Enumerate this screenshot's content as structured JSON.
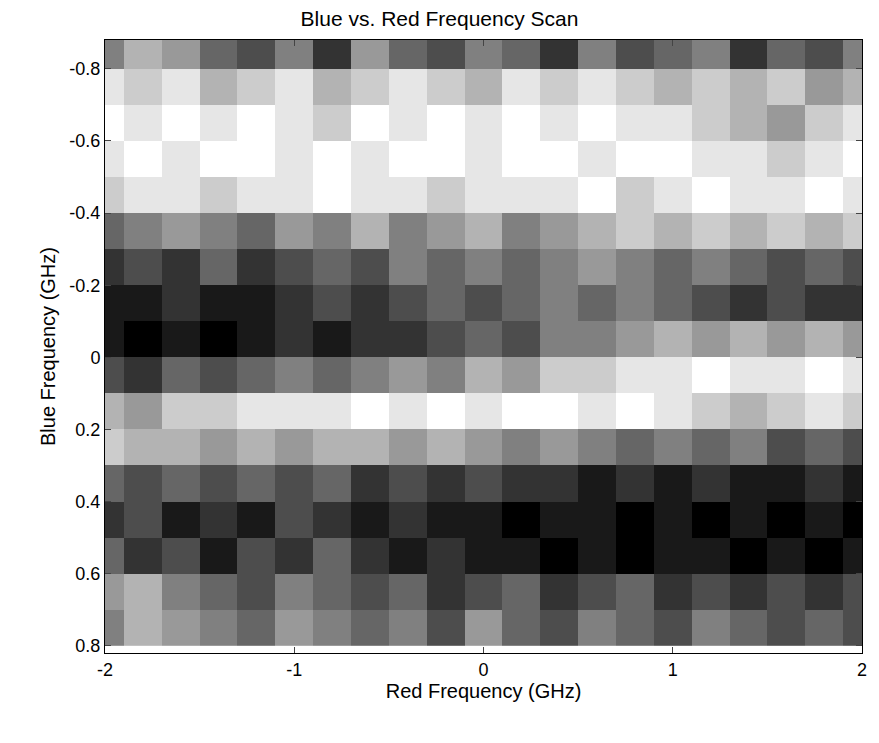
{
  "chart_data": {
    "type": "heatmap",
    "title": "Blue vs. Red Frequency Scan",
    "x_label": "Red Frequency (GHz)",
    "y_label": "Blue Frequency (GHz)",
    "x": [
      -2.0,
      -1.8,
      -1.6,
      -1.4,
      -1.2,
      -1.0,
      -0.8,
      -0.6,
      -0.4,
      -0.2,
      0.0,
      0.2,
      0.4,
      0.6,
      0.8,
      1.0,
      1.2,
      1.4,
      1.6,
      1.8,
      2.0
    ],
    "y": [
      -0.85,
      -0.75,
      -0.65,
      -0.55,
      -0.45,
      -0.35,
      -0.25,
      -0.15,
      -0.05,
      0.05,
      0.15,
      0.25,
      0.35,
      0.45,
      0.55,
      0.65,
      0.75
    ],
    "z": [
      [
        0.5,
        0.3,
        0.4,
        0.6,
        0.7,
        0.5,
        0.8,
        0.4,
        0.6,
        0.7,
        0.5,
        0.6,
        0.8,
        0.5,
        0.7,
        0.6,
        0.5,
        0.8,
        0.6,
        0.7,
        0.5
      ],
      [
        0.1,
        0.2,
        0.1,
        0.3,
        0.2,
        0.1,
        0.3,
        0.2,
        0.1,
        0.2,
        0.3,
        0.1,
        0.2,
        0.1,
        0.2,
        0.3,
        0.2,
        0.3,
        0.2,
        0.4,
        0.3
      ],
      [
        0.0,
        0.1,
        0.0,
        0.1,
        0.0,
        0.1,
        0.2,
        0.0,
        0.1,
        0.0,
        0.1,
        0.0,
        0.1,
        0.0,
        0.1,
        0.1,
        0.2,
        0.3,
        0.4,
        0.2,
        0.1
      ],
      [
        0.1,
        0.0,
        0.1,
        0.0,
        0.0,
        0.1,
        0.0,
        0.1,
        0.0,
        0.0,
        0.1,
        0.0,
        0.0,
        0.1,
        0.0,
        0.0,
        0.1,
        0.1,
        0.2,
        0.1,
        0.0
      ],
      [
        0.2,
        0.1,
        0.1,
        0.2,
        0.1,
        0.1,
        0.0,
        0.1,
        0.1,
        0.2,
        0.1,
        0.1,
        0.1,
        0.0,
        0.2,
        0.1,
        0.0,
        0.1,
        0.1,
        0.0,
        0.1
      ],
      [
        0.6,
        0.5,
        0.4,
        0.5,
        0.6,
        0.4,
        0.5,
        0.3,
        0.5,
        0.4,
        0.3,
        0.5,
        0.4,
        0.3,
        0.2,
        0.3,
        0.2,
        0.3,
        0.2,
        0.3,
        0.2
      ],
      [
        0.8,
        0.7,
        0.8,
        0.6,
        0.8,
        0.7,
        0.6,
        0.7,
        0.5,
        0.6,
        0.5,
        0.6,
        0.5,
        0.4,
        0.5,
        0.6,
        0.5,
        0.6,
        0.7,
        0.6,
        0.7
      ],
      [
        0.9,
        0.9,
        0.8,
        0.9,
        0.9,
        0.8,
        0.7,
        0.8,
        0.7,
        0.6,
        0.7,
        0.6,
        0.5,
        0.6,
        0.5,
        0.6,
        0.7,
        0.8,
        0.7,
        0.8,
        0.8
      ],
      [
        0.9,
        1.0,
        0.9,
        1.0,
        0.9,
        0.8,
        0.9,
        0.8,
        0.8,
        0.7,
        0.6,
        0.7,
        0.5,
        0.5,
        0.4,
        0.3,
        0.4,
        0.3,
        0.4,
        0.3,
        0.4
      ],
      [
        0.7,
        0.8,
        0.6,
        0.7,
        0.6,
        0.5,
        0.6,
        0.5,
        0.4,
        0.5,
        0.3,
        0.4,
        0.2,
        0.2,
        0.1,
        0.1,
        0.0,
        0.1,
        0.1,
        0.0,
        0.1
      ],
      [
        0.3,
        0.4,
        0.2,
        0.2,
        0.1,
        0.1,
        0.1,
        0.0,
        0.1,
        0.0,
        0.1,
        0.0,
        0.0,
        0.1,
        0.0,
        0.1,
        0.2,
        0.3,
        0.2,
        0.1,
        0.2
      ],
      [
        0.2,
        0.3,
        0.3,
        0.4,
        0.3,
        0.4,
        0.3,
        0.3,
        0.4,
        0.3,
        0.4,
        0.5,
        0.4,
        0.5,
        0.6,
        0.5,
        0.6,
        0.5,
        0.7,
        0.6,
        0.7
      ],
      [
        0.6,
        0.7,
        0.6,
        0.7,
        0.6,
        0.7,
        0.6,
        0.8,
        0.7,
        0.8,
        0.7,
        0.8,
        0.8,
        0.9,
        0.8,
        0.9,
        0.8,
        0.9,
        0.9,
        0.8,
        0.9
      ],
      [
        0.8,
        0.7,
        0.9,
        0.8,
        0.9,
        0.7,
        0.8,
        0.9,
        0.8,
        0.9,
        0.9,
        1.0,
        0.9,
        0.9,
        1.0,
        0.9,
        1.0,
        0.9,
        1.0,
        0.9,
        1.0
      ],
      [
        0.6,
        0.8,
        0.7,
        0.9,
        0.7,
        0.8,
        0.6,
        0.8,
        0.9,
        0.8,
        0.9,
        0.9,
        1.0,
        0.9,
        1.0,
        0.9,
        0.9,
        1.0,
        0.9,
        1.0,
        0.9
      ],
      [
        0.4,
        0.3,
        0.5,
        0.6,
        0.7,
        0.5,
        0.6,
        0.7,
        0.6,
        0.8,
        0.7,
        0.6,
        0.8,
        0.7,
        0.6,
        0.8,
        0.7,
        0.8,
        0.7,
        0.8,
        0.7
      ],
      [
        0.5,
        0.3,
        0.4,
        0.5,
        0.6,
        0.4,
        0.5,
        0.6,
        0.5,
        0.7,
        0.4,
        0.6,
        0.7,
        0.5,
        0.6,
        0.7,
        0.5,
        0.6,
        0.7,
        0.6,
        0.7
      ]
    ],
    "zlim": [
      0,
      1
    ],
    "xlim": [
      -2,
      2
    ],
    "xticks": [
      -2,
      -1,
      0,
      1,
      2
    ],
    "ylim": [
      -0.88,
      0.82
    ],
    "yticks": [
      -0.8,
      -0.6,
      -0.4,
      -0.2,
      0,
      0.2,
      0.4,
      0.6,
      0.8
    ],
    "grid": false
  }
}
